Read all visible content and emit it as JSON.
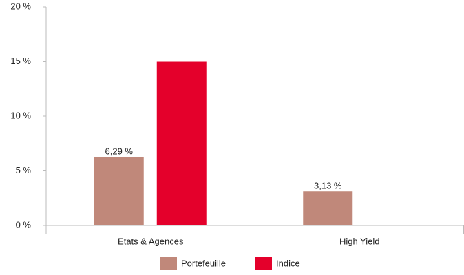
{
  "chart_data": {
    "type": "bar",
    "categories": [
      "Etats & Agences",
      "High Yield"
    ],
    "series": [
      {
        "name": "Portefeuille",
        "color": "#c0887a",
        "values": [
          6.29,
          3.13
        ],
        "value_labels": [
          "6,29 %",
          "3,13 %"
        ]
      },
      {
        "name": "Indice",
        "color": "#e4002b",
        "values": [
          15,
          null
        ]
      }
    ],
    "ylim": [
      0,
      20
    ],
    "yticks": [
      {
        "value": 0,
        "label": "0 %"
      },
      {
        "value": 5,
        "label": "5 %"
      },
      {
        "value": 10,
        "label": "10 %"
      },
      {
        "value": 15,
        "label": "15 %"
      },
      {
        "value": 20,
        "label": "20 %"
      }
    ],
    "grid": false
  }
}
